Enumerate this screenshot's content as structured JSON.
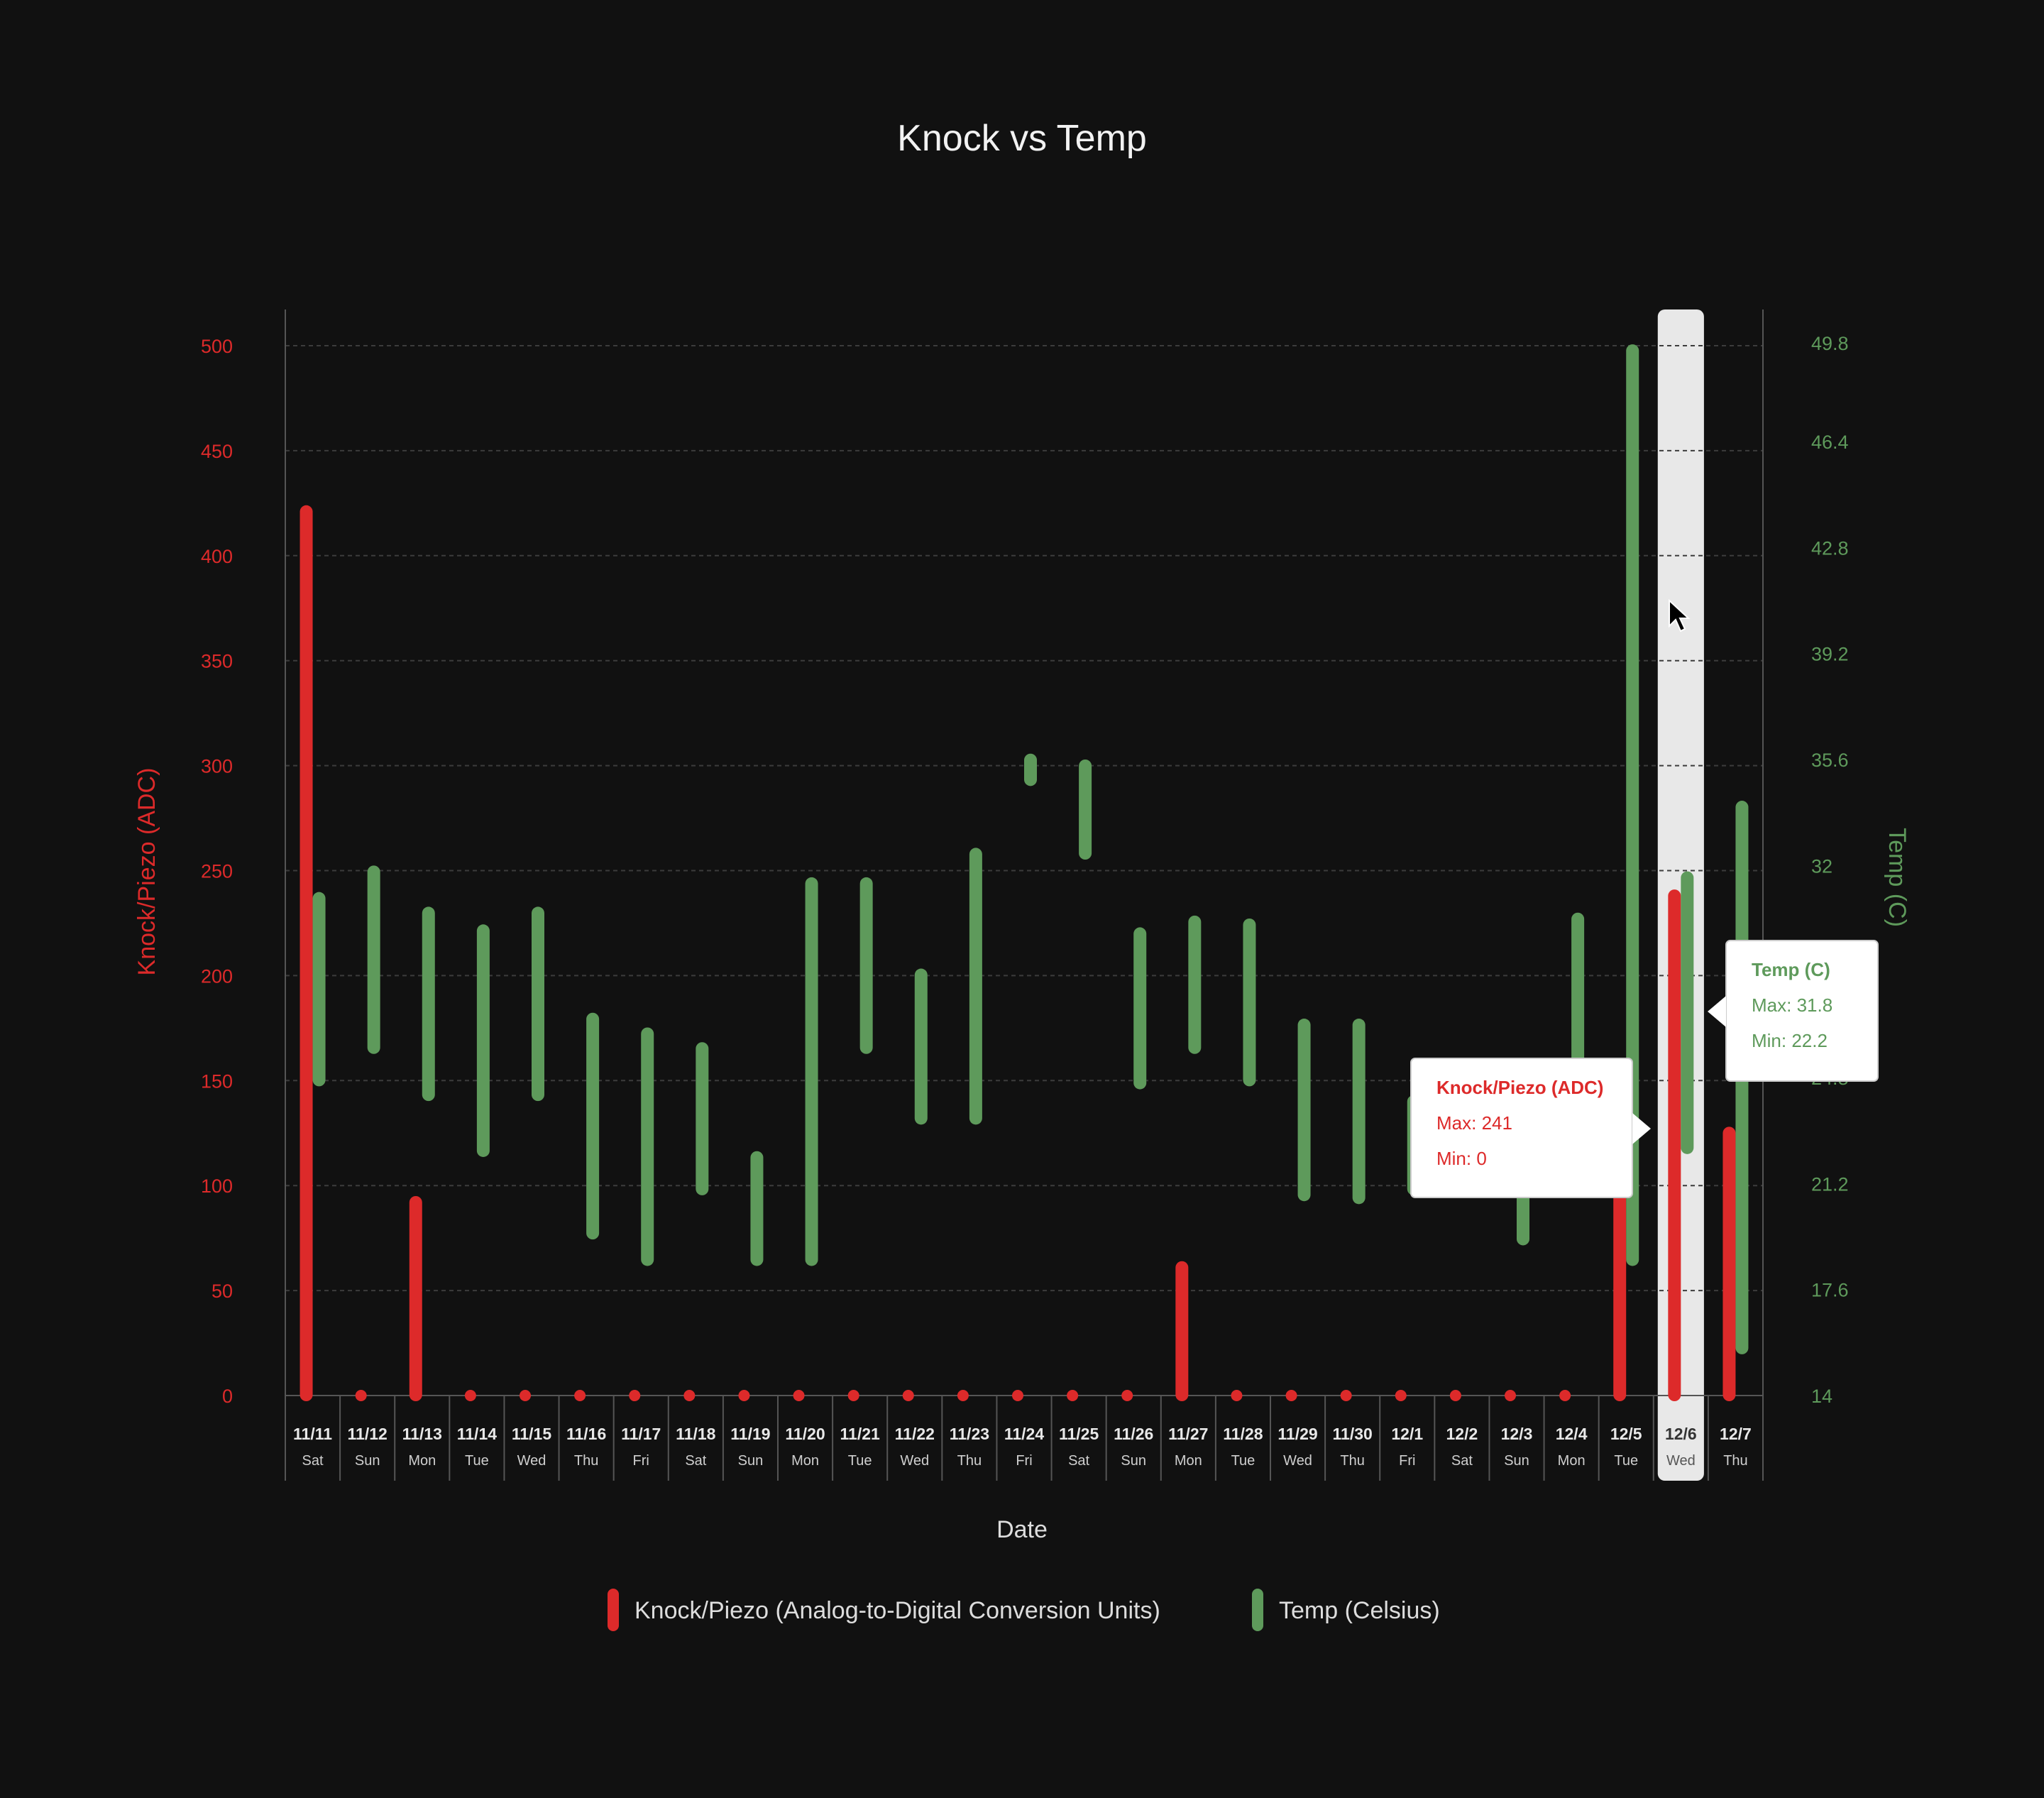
{
  "chart_data": {
    "type": "range-bar",
    "title": "Knock vs Temp",
    "xlabel": "Date",
    "ylabel_left": "Knock/Piezo (ADC)",
    "ylabel_right": "Temp (C)",
    "y_left_range": [
      0,
      520
    ],
    "y_left_ticks": [
      "0",
      "50",
      "100",
      "150",
      "200",
      "250",
      "300",
      "350",
      "400",
      "450",
      "500"
    ],
    "y_right_range": [
      14,
      51.08
    ],
    "y_right_ticks": [
      "14",
      "17.6",
      "21.2",
      "24.8",
      "28.4",
      "32",
      "35.6",
      "39.2",
      "42.8",
      "46.4",
      "49.8"
    ],
    "grid": true,
    "legend_position": "bottom-center",
    "categories": [
      {
        "date": "11/11",
        "day": "Sat"
      },
      {
        "date": "11/12",
        "day": "Sun"
      },
      {
        "date": "11/13",
        "day": "Mon"
      },
      {
        "date": "11/14",
        "day": "Tue"
      },
      {
        "date": "11/15",
        "day": "Wed"
      },
      {
        "date": "11/16",
        "day": "Thu"
      },
      {
        "date": "11/17",
        "day": "Fri"
      },
      {
        "date": "11/18",
        "day": "Sat"
      },
      {
        "date": "11/19",
        "day": "Sun"
      },
      {
        "date": "11/20",
        "day": "Mon"
      },
      {
        "date": "11/21",
        "day": "Tue"
      },
      {
        "date": "11/22",
        "day": "Wed"
      },
      {
        "date": "11/23",
        "day": "Thu"
      },
      {
        "date": "11/24",
        "day": "Fri"
      },
      {
        "date": "11/25",
        "day": "Sat"
      },
      {
        "date": "11/26",
        "day": "Sun"
      },
      {
        "date": "11/27",
        "day": "Mon"
      },
      {
        "date": "11/28",
        "day": "Tue"
      },
      {
        "date": "11/29",
        "day": "Wed"
      },
      {
        "date": "11/30",
        "day": "Thu"
      },
      {
        "date": "12/1",
        "day": "Fri"
      },
      {
        "date": "12/2",
        "day": "Sat"
      },
      {
        "date": "12/3",
        "day": "Sun"
      },
      {
        "date": "12/4",
        "day": "Mon"
      },
      {
        "date": "12/5",
        "day": "Tue"
      },
      {
        "date": "12/6",
        "day": "Wed"
      },
      {
        "date": "12/7",
        "day": "Thu"
      }
    ],
    "series": [
      {
        "name": "Knock/Piezo (Analog-to-Digital Conversion Units)",
        "axis": "left",
        "color": "#dd2a2a",
        "min": [
          0,
          0,
          0,
          0,
          0,
          0,
          0,
          0,
          0,
          0,
          0,
          0,
          0,
          0,
          0,
          0,
          0,
          0,
          0,
          0,
          0,
          0,
          0,
          0,
          0,
          0,
          0
        ],
        "max": [
          424,
          0,
          95,
          0,
          0,
          0,
          0,
          0,
          0,
          0,
          0,
          0,
          0,
          0,
          0,
          0,
          64,
          0,
          0,
          0,
          0,
          0,
          0,
          0,
          120,
          241,
          128
        ]
      },
      {
        "name": "Temp (Celsius)",
        "axis": "right",
        "color": "#5e9a5b",
        "min": [
          24.5,
          25.6,
          24.0,
          22.1,
          24.0,
          19.3,
          18.4,
          20.8,
          18.4,
          18.4,
          25.6,
          23.2,
          23.2,
          34.7,
          32.2,
          24.4,
          25.6,
          24.5,
          20.6,
          20.5,
          20.8,
          20.8,
          19.1,
          24.6,
          18.4,
          22.2,
          15.4
        ],
        "max": [
          31.1,
          32.0,
          30.6,
          30.0,
          30.6,
          27.0,
          26.5,
          26.0,
          22.3,
          31.6,
          31.6,
          28.5,
          32.6,
          35.8,
          35.6,
          29.9,
          30.3,
          30.2,
          26.8,
          26.8,
          24.2,
          25.4,
          24.1,
          30.4,
          49.7,
          31.8,
          34.2
        ]
      }
    ],
    "hover": {
      "index": 25,
      "knock_tooltip": {
        "title": "Knock/Piezo (ADC)",
        "max": "Max: 241",
        "min": "Min: 0"
      },
      "temp_tooltip": {
        "title": "Temp (C)",
        "max": "Max: 31.8",
        "min": "Min: 22.2"
      }
    }
  },
  "colors": {
    "background": "#111111",
    "knock": "#dd2a2a",
    "temp": "#5e9a5b",
    "grid": "#3c3c3c",
    "axis": "#555555",
    "text": "#e8e8e8",
    "highlight": "#e8e8e8"
  },
  "cursor_icon": "arrow-cursor-icon"
}
